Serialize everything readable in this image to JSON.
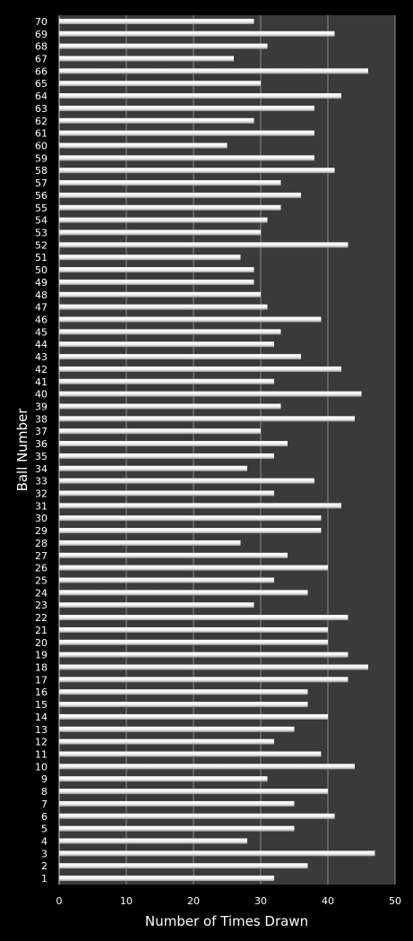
{
  "chart_data": {
    "type": "bar",
    "orientation": "horizontal",
    "title": "",
    "xlabel": "Number of Times Drawn",
    "ylabel": "Ball Number",
    "xlim": [
      0,
      50
    ],
    "x_ticks": [
      0,
      10,
      20,
      30,
      40,
      50
    ],
    "grid": true,
    "legend": "none",
    "colors": {
      "background": "#000000",
      "plot_area": "#3a3a3a",
      "gridline": "#8a8a8a",
      "bar_fill": "#ffffff",
      "bar_shade": "#a8a8a8",
      "text": "#ffffff"
    },
    "categories": [
      "1",
      "2",
      "3",
      "4",
      "5",
      "6",
      "7",
      "8",
      "9",
      "10",
      "11",
      "12",
      "13",
      "14",
      "15",
      "16",
      "17",
      "18",
      "19",
      "20",
      "21",
      "22",
      "23",
      "24",
      "25",
      "26",
      "27",
      "28",
      "29",
      "30",
      "31",
      "32",
      "33",
      "34",
      "35",
      "36",
      "37",
      "38",
      "39",
      "40",
      "41",
      "42",
      "43",
      "44",
      "45",
      "46",
      "47",
      "48",
      "49",
      "50",
      "51",
      "52",
      "53",
      "54",
      "55",
      "56",
      "57",
      "58",
      "59",
      "60",
      "61",
      "62",
      "63",
      "64",
      "65",
      "66",
      "67",
      "68",
      "69",
      "70"
    ],
    "values": [
      32,
      37,
      47,
      28,
      35,
      41,
      35,
      40,
      31,
      44,
      39,
      32,
      35,
      40,
      37,
      37,
      43,
      46,
      43,
      40,
      40,
      43,
      29,
      37,
      32,
      40,
      34,
      27,
      39,
      39,
      42,
      32,
      38,
      28,
      32,
      34,
      30,
      44,
      33,
      45,
      32,
      42,
      36,
      32,
      33,
      39,
      31,
      30,
      29,
      29,
      27,
      43,
      30,
      31,
      33,
      36,
      33,
      41,
      38,
      25,
      38,
      29,
      38,
      42,
      30,
      46,
      26,
      31,
      41,
      29
    ]
  }
}
